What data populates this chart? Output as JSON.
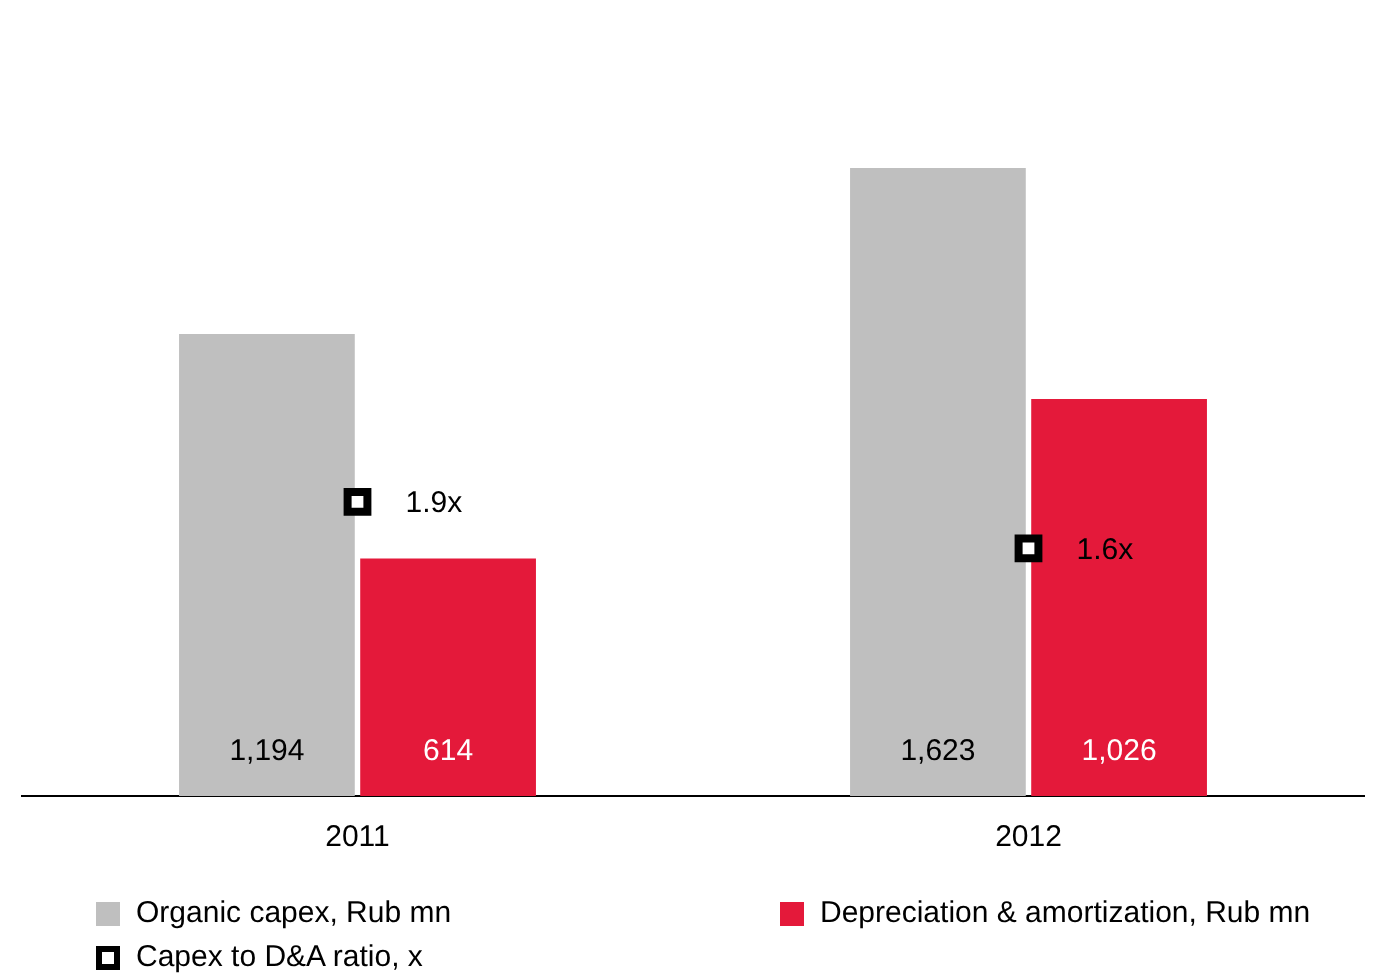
{
  "chart_data": {
    "type": "bar",
    "categories": [
      "2011",
      "2012"
    ],
    "series": [
      {
        "name": "Organic capex, Rub mn",
        "color": "#bfbfbf",
        "values": [
          1194,
          1623
        ],
        "value_labels": [
          "1,194",
          "1,623"
        ]
      },
      {
        "name": "Depreciation & amortization, Rub mn",
        "color": "#e4193a",
        "values": [
          614,
          1026
        ],
        "value_labels": [
          "614",
          "1,026"
        ]
      },
      {
        "name": "Capex to D&A ratio, x",
        "type": "scatter",
        "axis": "y2",
        "color": "#000000",
        "marker": "square",
        "values": [
          1.9,
          1.6
        ],
        "value_labels": [
          "1.9x",
          "1.6x"
        ]
      }
    ],
    "tick_labels": "x",
    "legend": "bottom"
  }
}
